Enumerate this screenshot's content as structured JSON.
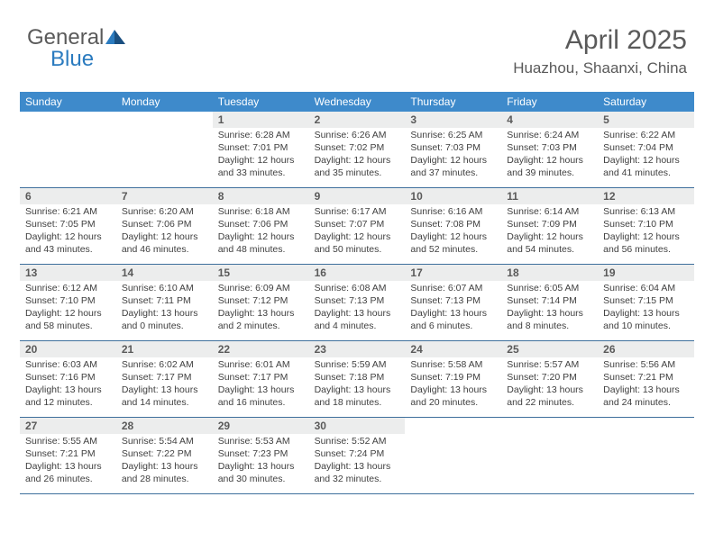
{
  "logo": {
    "part1": "General",
    "part2": "Blue"
  },
  "title": "April 2025",
  "location": "Huazhou, Shaanxi, China",
  "colors": {
    "header_bg": "#3e8acb",
    "header_text": "#ffffff",
    "daynum_bg": "#eceded",
    "text": "#5a5a5a",
    "row_border": "#3e6f9c",
    "logo_gray": "#5a5a5a",
    "logo_blue": "#2b7bbf"
  },
  "weekdays": [
    "Sunday",
    "Monday",
    "Tuesday",
    "Wednesday",
    "Thursday",
    "Friday",
    "Saturday"
  ],
  "weeks": [
    [
      null,
      null,
      {
        "n": "1",
        "sunrise": "6:28 AM",
        "sunset": "7:01 PM",
        "dl": "Daylight: 12 hours and 33 minutes."
      },
      {
        "n": "2",
        "sunrise": "6:26 AM",
        "sunset": "7:02 PM",
        "dl": "Daylight: 12 hours and 35 minutes."
      },
      {
        "n": "3",
        "sunrise": "6:25 AM",
        "sunset": "7:03 PM",
        "dl": "Daylight: 12 hours and 37 minutes."
      },
      {
        "n": "4",
        "sunrise": "6:24 AM",
        "sunset": "7:03 PM",
        "dl": "Daylight: 12 hours and 39 minutes."
      },
      {
        "n": "5",
        "sunrise": "6:22 AM",
        "sunset": "7:04 PM",
        "dl": "Daylight: 12 hours and 41 minutes."
      }
    ],
    [
      {
        "n": "6",
        "sunrise": "6:21 AM",
        "sunset": "7:05 PM",
        "dl": "Daylight: 12 hours and 43 minutes."
      },
      {
        "n": "7",
        "sunrise": "6:20 AM",
        "sunset": "7:06 PM",
        "dl": "Daylight: 12 hours and 46 minutes."
      },
      {
        "n": "8",
        "sunrise": "6:18 AM",
        "sunset": "7:06 PM",
        "dl": "Daylight: 12 hours and 48 minutes."
      },
      {
        "n": "9",
        "sunrise": "6:17 AM",
        "sunset": "7:07 PM",
        "dl": "Daylight: 12 hours and 50 minutes."
      },
      {
        "n": "10",
        "sunrise": "6:16 AM",
        "sunset": "7:08 PM",
        "dl": "Daylight: 12 hours and 52 minutes."
      },
      {
        "n": "11",
        "sunrise": "6:14 AM",
        "sunset": "7:09 PM",
        "dl": "Daylight: 12 hours and 54 minutes."
      },
      {
        "n": "12",
        "sunrise": "6:13 AM",
        "sunset": "7:10 PM",
        "dl": "Daylight: 12 hours and 56 minutes."
      }
    ],
    [
      {
        "n": "13",
        "sunrise": "6:12 AM",
        "sunset": "7:10 PM",
        "dl": "Daylight: 12 hours and 58 minutes."
      },
      {
        "n": "14",
        "sunrise": "6:10 AM",
        "sunset": "7:11 PM",
        "dl": "Daylight: 13 hours and 0 minutes."
      },
      {
        "n": "15",
        "sunrise": "6:09 AM",
        "sunset": "7:12 PM",
        "dl": "Daylight: 13 hours and 2 minutes."
      },
      {
        "n": "16",
        "sunrise": "6:08 AM",
        "sunset": "7:13 PM",
        "dl": "Daylight: 13 hours and 4 minutes."
      },
      {
        "n": "17",
        "sunrise": "6:07 AM",
        "sunset": "7:13 PM",
        "dl": "Daylight: 13 hours and 6 minutes."
      },
      {
        "n": "18",
        "sunrise": "6:05 AM",
        "sunset": "7:14 PM",
        "dl": "Daylight: 13 hours and 8 minutes."
      },
      {
        "n": "19",
        "sunrise": "6:04 AM",
        "sunset": "7:15 PM",
        "dl": "Daylight: 13 hours and 10 minutes."
      }
    ],
    [
      {
        "n": "20",
        "sunrise": "6:03 AM",
        "sunset": "7:16 PM",
        "dl": "Daylight: 13 hours and 12 minutes."
      },
      {
        "n": "21",
        "sunrise": "6:02 AM",
        "sunset": "7:17 PM",
        "dl": "Daylight: 13 hours and 14 minutes."
      },
      {
        "n": "22",
        "sunrise": "6:01 AM",
        "sunset": "7:17 PM",
        "dl": "Daylight: 13 hours and 16 minutes."
      },
      {
        "n": "23",
        "sunrise": "5:59 AM",
        "sunset": "7:18 PM",
        "dl": "Daylight: 13 hours and 18 minutes."
      },
      {
        "n": "24",
        "sunrise": "5:58 AM",
        "sunset": "7:19 PM",
        "dl": "Daylight: 13 hours and 20 minutes."
      },
      {
        "n": "25",
        "sunrise": "5:57 AM",
        "sunset": "7:20 PM",
        "dl": "Daylight: 13 hours and 22 minutes."
      },
      {
        "n": "26",
        "sunrise": "5:56 AM",
        "sunset": "7:21 PM",
        "dl": "Daylight: 13 hours and 24 minutes."
      }
    ],
    [
      {
        "n": "27",
        "sunrise": "5:55 AM",
        "sunset": "7:21 PM",
        "dl": "Daylight: 13 hours and 26 minutes."
      },
      {
        "n": "28",
        "sunrise": "5:54 AM",
        "sunset": "7:22 PM",
        "dl": "Daylight: 13 hours and 28 minutes."
      },
      {
        "n": "29",
        "sunrise": "5:53 AM",
        "sunset": "7:23 PM",
        "dl": "Daylight: 13 hours and 30 minutes."
      },
      {
        "n": "30",
        "sunrise": "5:52 AM",
        "sunset": "7:24 PM",
        "dl": "Daylight: 13 hours and 32 minutes."
      },
      null,
      null,
      null
    ]
  ]
}
